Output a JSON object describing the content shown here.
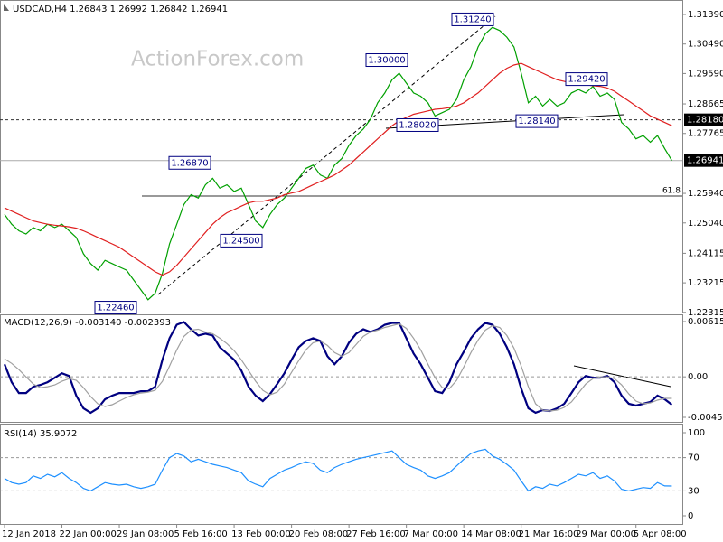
{
  "chart_data": [
    {
      "type": "line",
      "title": "USDCAD,H4 1.26843 1.26992 1.26842 1.26941",
      "watermark": "ActionForex.com",
      "categories": [
        "12 Jan 2018",
        null,
        null,
        null,
        null,
        null,
        null,
        null,
        "22 Jan 00:00",
        null,
        null,
        null,
        null,
        null,
        null,
        null,
        "29 Jan 08:00",
        null,
        null,
        null,
        null,
        null,
        null,
        null,
        "5 Feb 16:00",
        null,
        null,
        null,
        null,
        null,
        null,
        null,
        "13 Feb 00:00",
        null,
        null,
        null,
        null,
        null,
        null,
        null,
        "20 Feb 08:00",
        null,
        null,
        null,
        null,
        null,
        null,
        null,
        "27 Feb 16:00",
        null,
        null,
        null,
        null,
        null,
        null,
        null,
        "7 Mar 00:00",
        null,
        null,
        null,
        null,
        null,
        null,
        null,
        "14 Mar 08:00",
        null,
        null,
        null,
        null,
        null,
        null,
        null,
        "21 Mar 16:00",
        null,
        null,
        null,
        null,
        null,
        null,
        null,
        "29 Mar 00:00",
        null,
        null,
        null,
        null,
        null,
        null,
        null,
        "5 Apr 08:00",
        null,
        null,
        null,
        null,
        null
      ],
      "series": [
        {
          "color": "#00a000",
          "values": [
            1.253,
            1.25,
            1.248,
            1.247,
            1.249,
            1.248,
            1.25,
            1.249,
            1.25,
            1.248,
            1.246,
            1.241,
            1.238,
            1.236,
            1.239,
            1.238,
            1.237,
            1.236,
            1.233,
            1.23,
            1.227,
            1.229,
            1.235,
            1.244,
            1.25,
            1.256,
            1.259,
            1.258,
            1.262,
            1.264,
            1.261,
            1.262,
            1.26,
            1.261,
            1.256,
            1.251,
            1.249,
            1.253,
            1.256,
            1.258,
            1.261,
            1.264,
            1.267,
            1.268,
            1.265,
            1.264,
            1.268,
            1.27,
            1.274,
            1.277,
            1.279,
            1.282,
            1.287,
            1.29,
            1.294,
            1.296,
            1.293,
            1.29,
            1.289,
            1.287,
            1.283,
            1.284,
            1.285,
            1.288,
            1.294,
            1.298,
            1.304,
            1.308,
            1.31,
            1.309,
            1.307,
            1.304,
            1.296,
            1.287,
            1.289,
            1.286,
            1.288,
            1.286,
            1.287,
            1.29,
            1.291,
            1.29,
            1.292,
            1.289,
            1.29,
            1.288,
            1.281,
            1.279,
            1.276,
            1.277,
            1.275,
            1.277,
            1.273,
            1.2694
          ]
        },
        {
          "color": "#e02020",
          "values": [
            1.255,
            1.254,
            1.253,
            1.252,
            1.251,
            1.2505,
            1.25,
            1.2497,
            1.2495,
            1.2492,
            1.2488,
            1.248,
            1.247,
            1.246,
            1.245,
            1.244,
            1.243,
            1.2415,
            1.24,
            1.2385,
            1.237,
            1.2355,
            1.2345,
            1.2355,
            1.2375,
            1.24,
            1.2425,
            1.245,
            1.2475,
            1.25,
            1.252,
            1.2535,
            1.2545,
            1.2555,
            1.2565,
            1.257,
            1.257,
            1.2575,
            1.258,
            1.259,
            1.2595,
            1.26,
            1.261,
            1.262,
            1.263,
            1.264,
            1.265,
            1.2665,
            1.268,
            1.27,
            1.272,
            1.274,
            1.276,
            1.278,
            1.28,
            1.2815,
            1.2825,
            1.2835,
            1.284,
            1.2845,
            1.285,
            1.2852,
            1.2855,
            1.286,
            1.287,
            1.2885,
            1.29,
            1.292,
            1.294,
            1.296,
            1.2975,
            1.2985,
            1.299,
            1.298,
            1.297,
            1.296,
            1.295,
            1.294,
            1.2935,
            1.293,
            1.2928,
            1.2925,
            1.2922,
            1.292,
            1.2915,
            1.2905,
            1.289,
            1.2875,
            1.286,
            1.2845,
            1.283,
            1.282,
            1.281,
            1.28
          ]
        }
      ],
      "ylim": [
        1.2231,
        1.3183
      ],
      "yticks": [
        {
          "value": 1.3139,
          "label": "1.31390"
        },
        {
          "value": 1.3049,
          "label": "1.30490"
        },
        {
          "value": 1.2959,
          "label": "1.29590"
        },
        1.28665,
        1.27765,
        {
          "value": 1.2594,
          "label": "1.25940"
        },
        {
          "value": 1.2504,
          "label": "1.25040"
        },
        1.24115,
        1.23215,
        1.22315
      ],
      "grid": false,
      "price_levels": [
        {
          "value": 1.2818,
          "label": "1.28180",
          "style": "dashed"
        },
        {
          "value": 1.26941,
          "label": "1.26941",
          "style": "solid"
        }
      ],
      "fib_line": {
        "value": 1.2586,
        "label": "61.8"
      },
      "annotations": [
        {
          "value": 1.3124,
          "label": "1.31240"
        },
        {
          "value": 1.3,
          "label": "1.30000"
        },
        {
          "value": 1.2942,
          "label": "1.29420"
        },
        {
          "value": 1.2802,
          "label": "1.28020"
        },
        {
          "value": 1.2814,
          "label": "1.28140"
        },
        {
          "value": 1.2687,
          "label": "1.26870"
        },
        {
          "value": 1.245,
          "label": "1.24500"
        },
        {
          "value": 1.2246,
          "label": "1.22460"
        }
      ]
    },
    {
      "type": "line",
      "title": "MACD(12,26,9) -0.003140 -0.002393",
      "series": [
        {
          "color": "#000080",
          "values": [
            0.0014,
            -0.0006,
            -0.0018,
            -0.0018,
            -0.0011,
            -0.0009,
            -0.0006,
            -0.0001,
            0.0004,
            0.0001,
            -0.0021,
            -0.0035,
            -0.004,
            -0.0035,
            -0.0025,
            -0.0021,
            -0.0018,
            -0.0018,
            -0.0018,
            -0.0016,
            -0.0016,
            -0.0011,
            0.0019,
            0.0043,
            0.0058,
            0.0061,
            0.0053,
            0.0046,
            0.0048,
            0.0046,
            0.0033,
            0.0026,
            0.0019,
            0.0007,
            -0.0011,
            -0.0021,
            -0.0027,
            -0.0019,
            -0.0008,
            0.0004,
            0.0019,
            0.0033,
            0.004,
            0.0043,
            0.004,
            0.0023,
            0.0014,
            0.0023,
            0.0038,
            0.0048,
            0.0053,
            0.005,
            0.0053,
            0.0058,
            0.006,
            0.006,
            0.0043,
            0.0026,
            0.0014,
            -0.0001,
            -0.0016,
            -0.0018,
            -0.0006,
            0.0014,
            0.0028,
            0.0043,
            0.0053,
            0.006,
            0.0058,
            0.0048,
            0.0033,
            0.0014,
            -0.0013,
            -0.0035,
            -0.004,
            -0.0037,
            -0.0038,
            -0.0035,
            -0.003,
            -0.0018,
            -0.0006,
            0.0001,
            -0.0001,
            -0.0001,
            0.0001,
            -0.0006,
            -0.0021,
            -0.003,
            -0.0032,
            -0.003,
            -0.0028,
            -0.0021,
            -0.0025,
            -0.0031
          ]
        },
        {
          "color": "#a0a0a0",
          "values": [
            0.002,
            0.0015,
            0.0008,
            0.0,
            -0.0008,
            -0.0012,
            -0.0011,
            -0.0009,
            -0.0005,
            -0.0002,
            -0.0004,
            -0.0012,
            -0.0022,
            -0.003,
            -0.0033,
            -0.0031,
            -0.0027,
            -0.0023,
            -0.002,
            -0.0018,
            -0.0017,
            -0.0015,
            -0.0005,
            0.0012,
            0.003,
            0.0045,
            0.0052,
            0.0053,
            0.005,
            0.0048,
            0.0043,
            0.0037,
            0.0029,
            0.0019,
            0.0007,
            -0.0005,
            -0.0015,
            -0.002,
            -0.0017,
            -0.0008,
            0.0005,
            0.0018,
            0.003,
            0.0038,
            0.004,
            0.0035,
            0.0027,
            0.0023,
            0.0027,
            0.0036,
            0.0045,
            0.005,
            0.0052,
            0.0055,
            0.0057,
            0.0059,
            0.0054,
            0.0043,
            0.003,
            0.0014,
            -0.0001,
            -0.0012,
            -0.0013,
            -0.0004,
            0.0011,
            0.0027,
            0.0041,
            0.0052,
            0.0057,
            0.0055,
            0.0046,
            0.0032,
            0.0012,
            -0.0011,
            -0.003,
            -0.0037,
            -0.0038,
            -0.0037,
            -0.0034,
            -0.0028,
            -0.0018,
            -0.0008,
            -0.0002,
            0.0,
            0.0,
            -0.0002,
            -0.0009,
            -0.0019,
            -0.0027,
            -0.003,
            -0.0029,
            -0.0026,
            -0.0024,
            -0.0024
          ]
        }
      ],
      "ylim": [
        -0.004509,
        0.006152
      ],
      "yticks": [
        0.006152,
        {
          "value": 0,
          "label": "0.00"
        },
        -0.004509
      ],
      "grid": true
    },
    {
      "type": "line",
      "title": "RSI(14) 35.9072",
      "series": [
        {
          "color": "#1e90ff",
          "values": [
            45,
            40,
            38,
            40,
            48,
            45,
            50,
            47,
            52,
            45,
            40,
            33,
            30,
            35,
            40,
            38,
            37,
            38,
            35,
            33,
            35,
            38,
            55,
            70,
            75,
            72,
            65,
            68,
            65,
            62,
            60,
            58,
            55,
            52,
            42,
            38,
            35,
            45,
            50,
            55,
            58,
            62,
            65,
            63,
            55,
            52,
            58,
            62,
            65,
            68,
            70,
            72,
            74,
            76,
            78,
            70,
            62,
            58,
            55,
            48,
            45,
            48,
            52,
            60,
            68,
            75,
            78,
            80,
            72,
            68,
            62,
            55,
            42,
            30,
            35,
            33,
            38,
            36,
            40,
            45,
            50,
            48,
            52,
            45,
            48,
            42,
            32,
            30,
            32,
            34,
            33,
            40,
            36,
            35.9
          ]
        }
      ],
      "ylim": [
        0,
        100
      ],
      "yticks": [
        100,
        70,
        30,
        0
      ],
      "grid": true
    }
  ]
}
